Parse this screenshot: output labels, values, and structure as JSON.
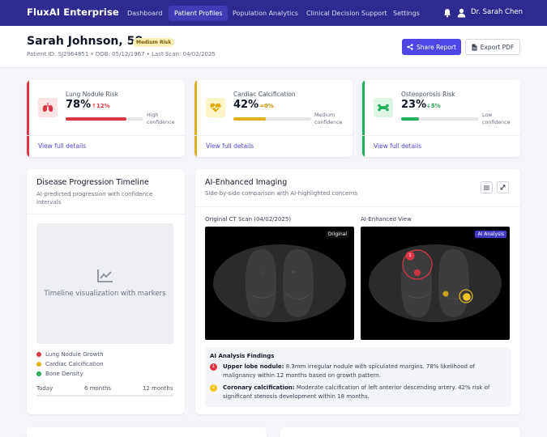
{
  "app": {
    "brand": "FluxAI Enterprise"
  },
  "nav": {
    "items": [
      "Dashboard",
      "Patient Profiles",
      "Population Analytics",
      "Clinical Decision Support",
      "Settings"
    ],
    "active": "Patient Profiles",
    "user_name": "Dr. Sarah Chen"
  },
  "patient": {
    "name_age": "Sarah Johnson, 58",
    "risk_badge": "Medium Risk",
    "meta": "Patient ID: SJ2964851 • DOB: 05/12/1967 • Last Scan: 04/02/2025"
  },
  "actions": {
    "share": "Share Report",
    "export": "Export PDF"
  },
  "risk_cards": [
    {
      "title": "Lung Nodule Risk",
      "value": "78%",
      "change": "↑12%",
      "level": 0.78,
      "confidence": "High confidence",
      "link": "View full details",
      "accent": "#dc3545",
      "icon": "lungs-icon"
    },
    {
      "title": "Cardiac Calcification",
      "value": "42%",
      "change": "=0%",
      "level": 0.42,
      "confidence": "Medium confidence",
      "link": "View full details",
      "accent": "#e0b020",
      "icon": "heart-pulse-icon"
    },
    {
      "title": "Osteoporosis Risk",
      "value": "23%",
      "change": "↓5%",
      "level": 0.23,
      "confidence": "Low confidence",
      "link": "View full details",
      "accent": "#22b05a",
      "icon": "bone-icon"
    }
  ],
  "timeline": {
    "title": "Disease Progression Timeline",
    "subtitle": "AI-predicted progression with confidence intervals",
    "placeholder": "Timeline visualization with markers",
    "legend": [
      {
        "label": "Lung Nodule Growth",
        "color": "#dc3545"
      },
      {
        "label": "Cardiac Calcification",
        "color": "#e0b020"
      },
      {
        "label": "Bone Density",
        "color": "#22b05a"
      }
    ],
    "ticks": [
      "Today",
      "6 months",
      "12 months"
    ]
  },
  "imaging": {
    "title": "AI-Enhanced Imaging",
    "subtitle": "Side-by-side comparison with AI-highlighted concerns",
    "original_label": "Original CT Scan (04/02/2025)",
    "enhanced_label": "AI-Enhanced View",
    "original_tag": "Original",
    "enhanced_tag": "AI Analysis",
    "marker_number": "1"
  },
  "findings": {
    "title": "AI Analysis Findings",
    "items": [
      {
        "num": "1",
        "heading": "Upper lobe nodule:",
        "text": "8.3mm irregular nodule with spiculated margins. 78% likelihood of malignancy within 12 months based on growth pattern.",
        "color": "#dc3545"
      },
      {
        "num": "2",
        "heading": "Coronary calcification:",
        "text": "Moderate calcification of left anterior descending artery. 42% risk of significant stenosis development within 18 months.",
        "color": "#f5c518"
      }
    ]
  }
}
